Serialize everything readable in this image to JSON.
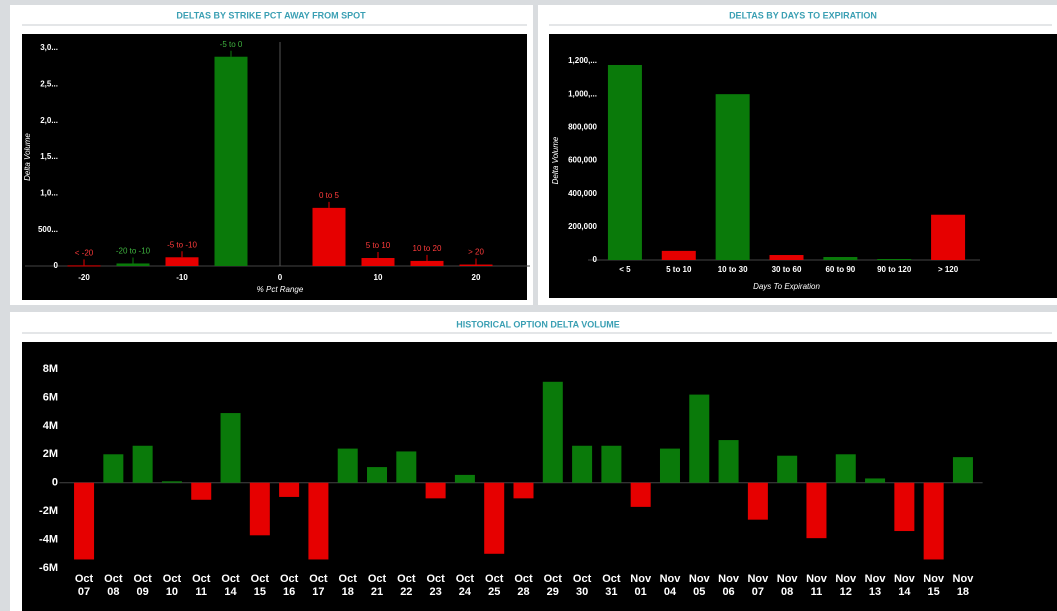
{
  "chart_data": [
    {
      "type": "bar",
      "title": "DELTAS BY STRIKE PCT AWAY FROM SPOT",
      "x_label": "% Pct Range",
      "y_label": "Delta Volume",
      "x": [
        -20,
        -15,
        -10,
        -5,
        5,
        10,
        15,
        20
      ],
      "labels": [
        "< -20",
        "-20 to -10",
        "-5 to -10",
        "-5 to 0",
        "0 to 5",
        "5 to 10",
        "10 to 20",
        "> 20"
      ],
      "values": [
        8000,
        35000,
        120000,
        2880000,
        800000,
        110000,
        70000,
        20000
      ],
      "colors": [
        "#e60000",
        "#0a7a0a",
        "#e60000",
        "#0a7a0a",
        "#e60000",
        "#e60000",
        "#e60000",
        "#e60000"
      ],
      "xlim": [
        -25,
        25
      ],
      "xticks": [
        -20,
        -10,
        0,
        10,
        20
      ],
      "ylim": [
        0,
        3000000
      ],
      "yticks": [
        0,
        {
          "value": 500000,
          "label": "500..."
        },
        {
          "value": 1000000,
          "label": "1,0..."
        },
        {
          "value": 1500000,
          "label": "1,5..."
        },
        {
          "value": 2000000,
          "label": "2,0..."
        },
        {
          "value": 2500000,
          "label": "2,5..."
        },
        {
          "value": 3000000,
          "label": "3,0..."
        }
      ]
    },
    {
      "type": "bar",
      "title": "DELTAS BY DAYS TO EXPIRATION",
      "x_label": "Days To Expiration",
      "y_label": "Delta Volume",
      "categories": [
        "< 5",
        "5 to 10",
        "10 to 30",
        "30 to 60",
        "60 to 90",
        "90 to 120",
        "> 120"
      ],
      "values": [
        1176000,
        55000,
        1000000,
        30000,
        18000,
        6000,
        273000
      ],
      "colors": [
        "#0a7a0a",
        "#e60000",
        "#0a7a0a",
        "#e60000",
        "#0a7a0a",
        "#0a7a0a",
        "#e60000"
      ],
      "ylim": [
        0,
        1200000
      ],
      "yticks": [
        0,
        {
          "value": 200000,
          "label": "200,000"
        },
        {
          "value": 400000,
          "label": "400,000"
        },
        {
          "value": 600000,
          "label": "600,000"
        },
        {
          "value": 800000,
          "label": "800,000"
        },
        {
          "value": 1000000,
          "label": "1,000,..."
        },
        {
          "value": 1200000,
          "label": "1,200,..."
        }
      ]
    },
    {
      "type": "bar",
      "title": "HISTORICAL OPTION DELTA VOLUME",
      "categories": [
        "Oct 07",
        "Oct 08",
        "Oct 09",
        "Oct 10",
        "Oct 11",
        "Oct 14",
        "Oct 15",
        "Oct 16",
        "Oct 17",
        "Oct 18",
        "Oct 21",
        "Oct 22",
        "Oct 23",
        "Oct 24",
        "Oct 25",
        "Oct 28",
        "Oct 29",
        "Oct 30",
        "Oct 31",
        "Nov 01",
        "Nov 04",
        "Nov 05",
        "Nov 06",
        "Nov 07",
        "Nov 08",
        "Nov 11",
        "Nov 12",
        "Nov 13",
        "Nov 14",
        "Nov 15",
        "Nov 18"
      ],
      "values": [
        -5400000,
        2000000,
        2600000,
        100000,
        -1200000,
        4900000,
        -3700000,
        -1000000,
        -5400000,
        2400000,
        1100000,
        2200000,
        -1100000,
        550000,
        -5000000,
        -1100000,
        7100000,
        2600000,
        2600000,
        -1700000,
        2400000,
        6200000,
        3000000,
        -2600000,
        1900000,
        -3900000,
        2000000,
        300000,
        -3400000,
        -5400000,
        1800000
      ],
      "up_color": "#0a7a0a",
      "down_color": "#e60000",
      "ylim": [
        -6000000,
        8000000
      ],
      "yticks": [
        {
          "value": -6000000,
          "label": "-6M"
        },
        {
          "value": -4000000,
          "label": "-4M"
        },
        {
          "value": -2000000,
          "label": "-2M"
        },
        0,
        {
          "value": 2000000,
          "label": "2M"
        },
        {
          "value": 4000000,
          "label": "4M"
        },
        {
          "value": 6000000,
          "label": "6M"
        },
        {
          "value": 8000000,
          "label": "8M"
        }
      ]
    }
  ]
}
